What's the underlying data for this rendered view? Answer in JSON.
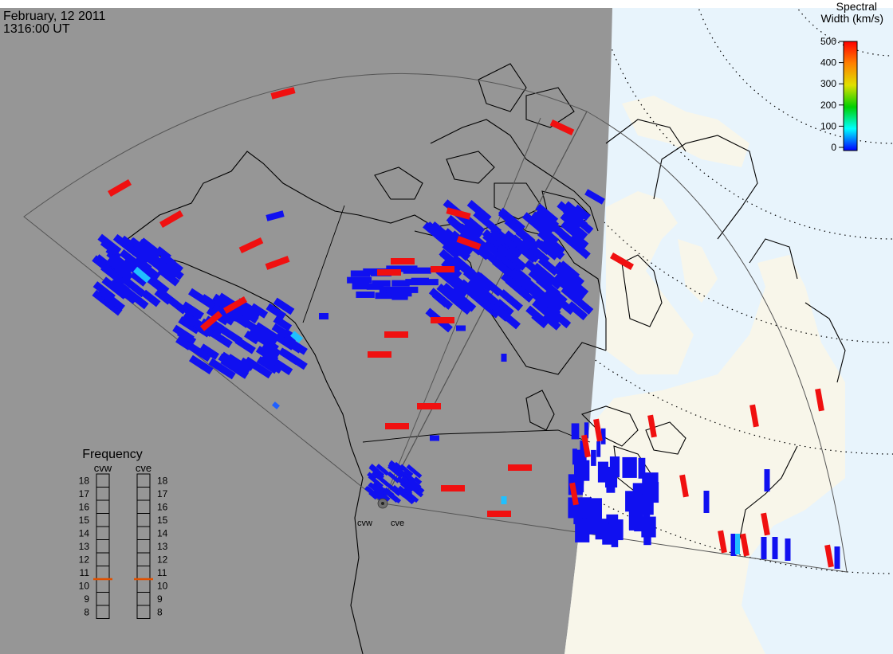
{
  "header": {
    "date": "February, 12 2011",
    "time": "1316:00 UT"
  },
  "colors": {
    "night_side": "#969696",
    "day_ocean": "#e8f4fc",
    "day_land": "#f8f6ea",
    "scatter_low": "#1010f0",
    "scatter_high": "#f01010",
    "scatter_mid": "#20c0ff"
  },
  "colorbar": {
    "title_line1": "Spectral",
    "title_line2": "Width (km/s)",
    "ticks": [
      "500",
      "400",
      "300",
      "200",
      "100",
      "0"
    ],
    "range": [
      0,
      500
    ]
  },
  "frequency": {
    "title": "Frequency",
    "radars": [
      {
        "name": "cvw",
        "value_mhz": 10.5
      },
      {
        "name": "cve",
        "value_mhz": 10.5
      }
    ],
    "scale": [
      "18",
      "17",
      "16",
      "15",
      "14",
      "13",
      "12",
      "11",
      "10",
      "9",
      "8"
    ],
    "range": [
      8,
      18
    ]
  },
  "stations": [
    {
      "name": "cvw"
    },
    {
      "name": "cve"
    }
  ]
}
